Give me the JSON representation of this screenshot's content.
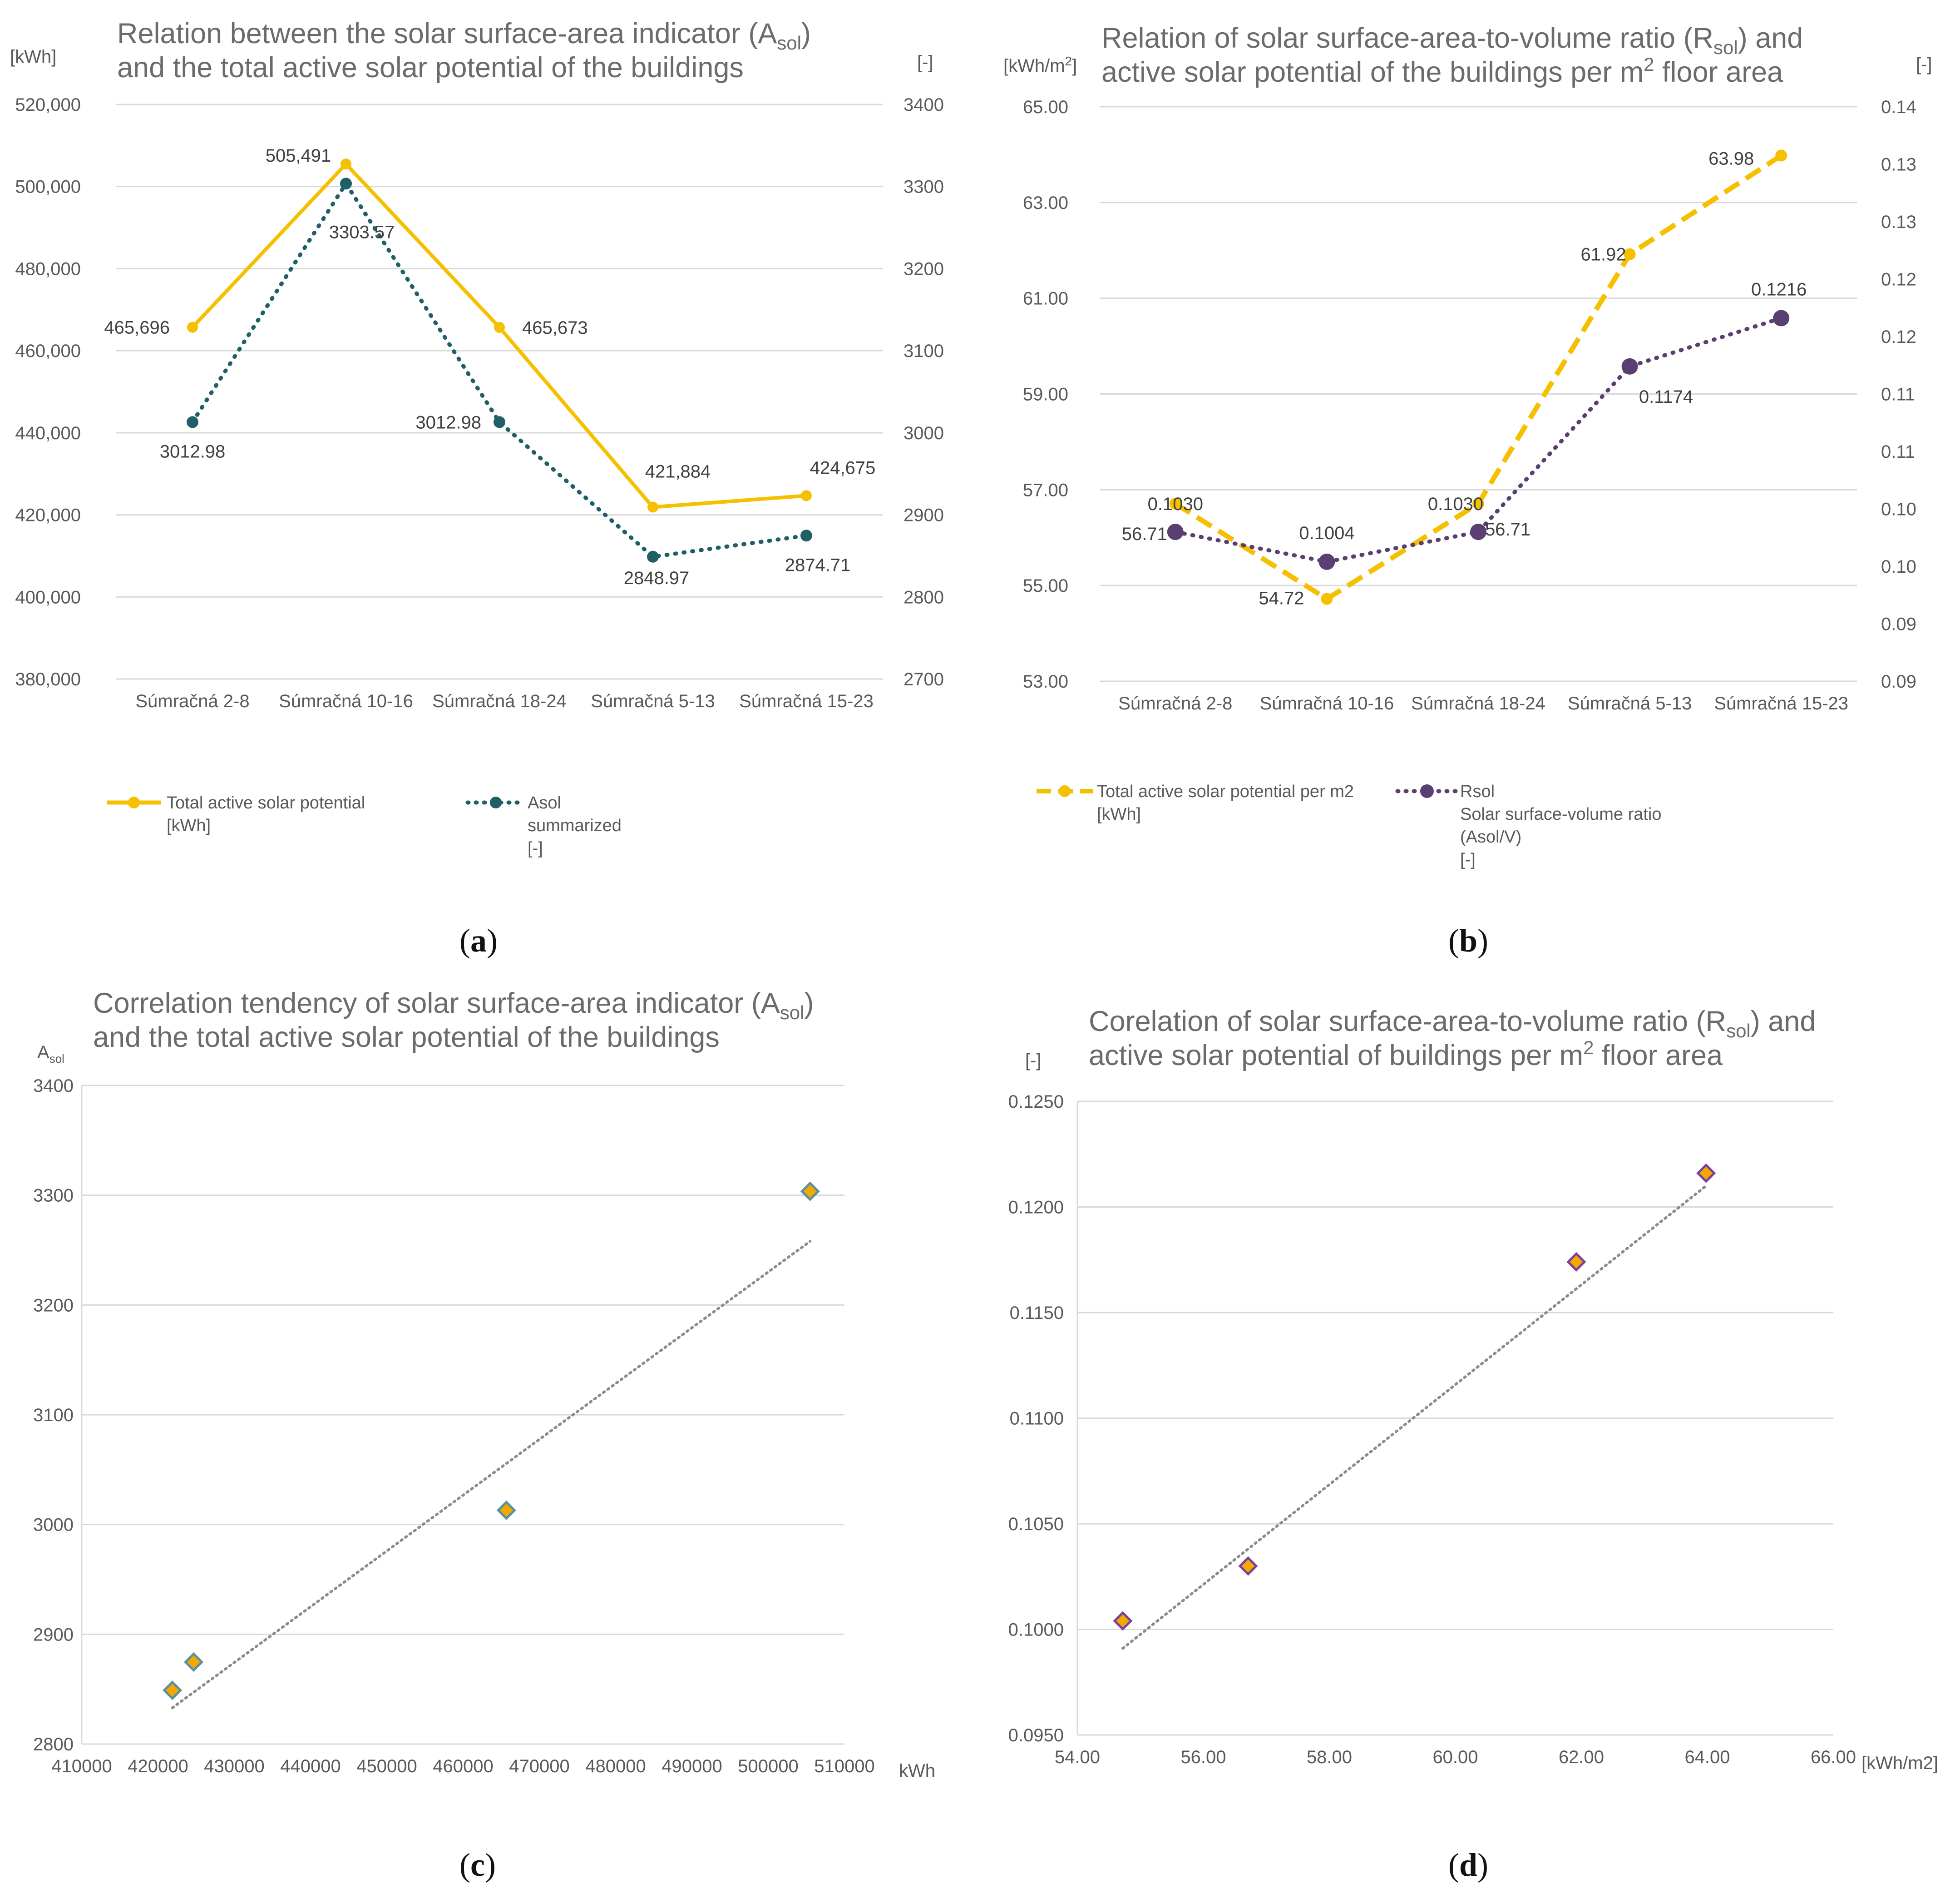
{
  "colors": {
    "yellow": "#f5c000",
    "teal": "#1f5f66",
    "purple": "#5a3f73",
    "grid": "#d9d9d9",
    "text": "#595959",
    "trend": "#8c8c8c",
    "diamond_orange": "#f2a900",
    "diamond_teal_edge": "#5c8fa3",
    "diamond_purple_edge": "#7a3fa0"
  },
  "captions": {
    "a": "a",
    "b": "b",
    "c": "c",
    "d": "d"
  },
  "chart_data": [
    {
      "id": "a",
      "type": "line",
      "title_line1": "Relation between the solar surface-area indicator (A",
      "title_sub": "sol",
      "title_line1_end": ")",
      "title_line2": "and the total active solar potential of the buildings",
      "left_unit": "[kWh]",
      "right_unit": "[-]",
      "categories": [
        "Súmračná 2-8",
        "Súmračná 10-16",
        "Súmračná 18-24",
        "Súmračná 5-13",
        "Súmračná 15-23"
      ],
      "ylim_left": [
        380000,
        520000
      ],
      "ylim_right": [
        2700,
        3400
      ],
      "left_ticks": [
        "380,000",
        "400,000",
        "420,000",
        "440,000",
        "460,000",
        "480,000",
        "500,000",
        "520,000"
      ],
      "right_ticks": [
        "2700",
        "2800",
        "2900",
        "3000",
        "3100",
        "3200",
        "3300",
        "3400"
      ],
      "series": [
        {
          "name": "Total active solar potential",
          "unit": "[kWh]",
          "axis": "left",
          "style": "solid",
          "color": "#f5c000",
          "values": [
            465696,
            505491,
            465673,
            421884,
            424675
          ],
          "labels": [
            "465,696",
            "505,491",
            "465,673",
            "421,884",
            "424,675"
          ]
        },
        {
          "name": "Asol",
          "name_line2": "summarized",
          "unit": "[-]",
          "axis": "right",
          "style": "dotted",
          "color": "#1f5f66",
          "values": [
            3012.98,
            3303.57,
            3012.98,
            2848.97,
            2874.71
          ],
          "labels": [
            "3012.98",
            "3303.57",
            "3012.98",
            "2848.97",
            "2874.71"
          ]
        }
      ]
    },
    {
      "id": "b",
      "type": "line",
      "title_line1": "Relation of solar surface-area-to-volume ratio (R",
      "title_sub": "sol",
      "title_line1_end": ") and",
      "title_line2": "active solar potential of the buildings per m",
      "title_sup": "2",
      "title_line2_end": " floor area",
      "left_unit": "[kWh/m",
      "left_unit_sup": "2",
      "left_unit_end": "]",
      "right_unit": "[-]",
      "categories": [
        "Súmračná 2-8",
        "Súmračná 10-16",
        "Súmračná 18-24",
        "Súmračná 5-13",
        "Súmračná 15-23"
      ],
      "ylim_left": [
        53,
        65
      ],
      "ylim_right": [
        0.09,
        0.14
      ],
      "left_ticks": [
        "53.00",
        "55.00",
        "57.00",
        "59.00",
        "61.00",
        "63.00",
        "65.00"
      ],
      "right_ticks": [
        "0.09",
        "0.09",
        "0.10",
        "0.10",
        "0.11",
        "0.11",
        "0.12",
        "0.12",
        "0.13",
        "0.13",
        "0.14"
      ],
      "series": [
        {
          "name": "Total active solar potential per m2",
          "unit": "[kWh]",
          "axis": "left",
          "style": "dashed",
          "color": "#f5c000",
          "values": [
            56.71,
            54.72,
            56.71,
            61.92,
            63.98
          ],
          "labels": [
            "56.71",
            "54.72",
            "56.71",
            "61.92",
            "63.98"
          ]
        },
        {
          "name": "Rsol",
          "name_line2": "Solar surface-volume ratio",
          "name_line3": "(Asol/V)",
          "unit": "[-]",
          "axis": "right",
          "style": "dotted",
          "color": "#5a3f73",
          "values": [
            0.103,
            0.1004,
            0.103,
            0.1174,
            0.1216
          ],
          "labels": [
            "0.1030",
            "0.1004",
            "0.1030",
            "0.1174",
            "0.1216"
          ]
        }
      ]
    },
    {
      "id": "c",
      "type": "scatter",
      "title_line1": "Correlation tendency of solar surface-area indicator (A",
      "title_sub": "sol",
      "title_line1_end": ")",
      "title_line2": "and the total active solar potential of the buildings",
      "ylabel": "A",
      "ylabel_sub": "sol",
      "xlabel": "kWh",
      "xlim": [
        410000,
        510000
      ],
      "ylim": [
        2800,
        3400
      ],
      "x_ticks": [
        "410000",
        "420000",
        "430000",
        "440000",
        "450000",
        "460000",
        "470000",
        "480000",
        "490000",
        "500000",
        "510000"
      ],
      "y_ticks": [
        "2800",
        "2900",
        "3000",
        "3100",
        "3200",
        "3300",
        "3400"
      ],
      "x": [
        421884,
        424675,
        465673,
        505491
      ],
      "y": [
        2848.97,
        2874.71,
        3012.98,
        3303.57
      ],
      "trendline": {
        "x": [
          421884,
          505491
        ],
        "y": [
          2833,
          3258
        ]
      }
    },
    {
      "id": "d",
      "type": "scatter",
      "title_line1": "Corelation of solar surface-area-to-volume ratio (R",
      "title_sub": "sol",
      "title_line1_end": ") and",
      "title_line2": "active solar potential of buildings per m",
      "title_sup": "2",
      "title_line2_end": " floor area",
      "ylabel": "[-]",
      "xlabel": "[kWh/m2]",
      "xlim": [
        54,
        66
      ],
      "ylim": [
        0.095,
        0.125
      ],
      "x_ticks": [
        "54.00",
        "56.00",
        "58.00",
        "60.00",
        "62.00",
        "64.00",
        "66.00"
      ],
      "y_ticks": [
        "0.0950",
        "0.1000",
        "0.1050",
        "0.1100",
        "0.1150",
        "0.1200",
        "0.1250"
      ],
      "x": [
        54.72,
        56.71,
        61.92,
        63.98
      ],
      "y": [
        0.1004,
        0.103,
        0.1174,
        0.1216
      ],
      "trendline": {
        "x": [
          54.72,
          63.98
        ],
        "y": [
          0.0991,
          0.121
        ]
      }
    }
  ]
}
